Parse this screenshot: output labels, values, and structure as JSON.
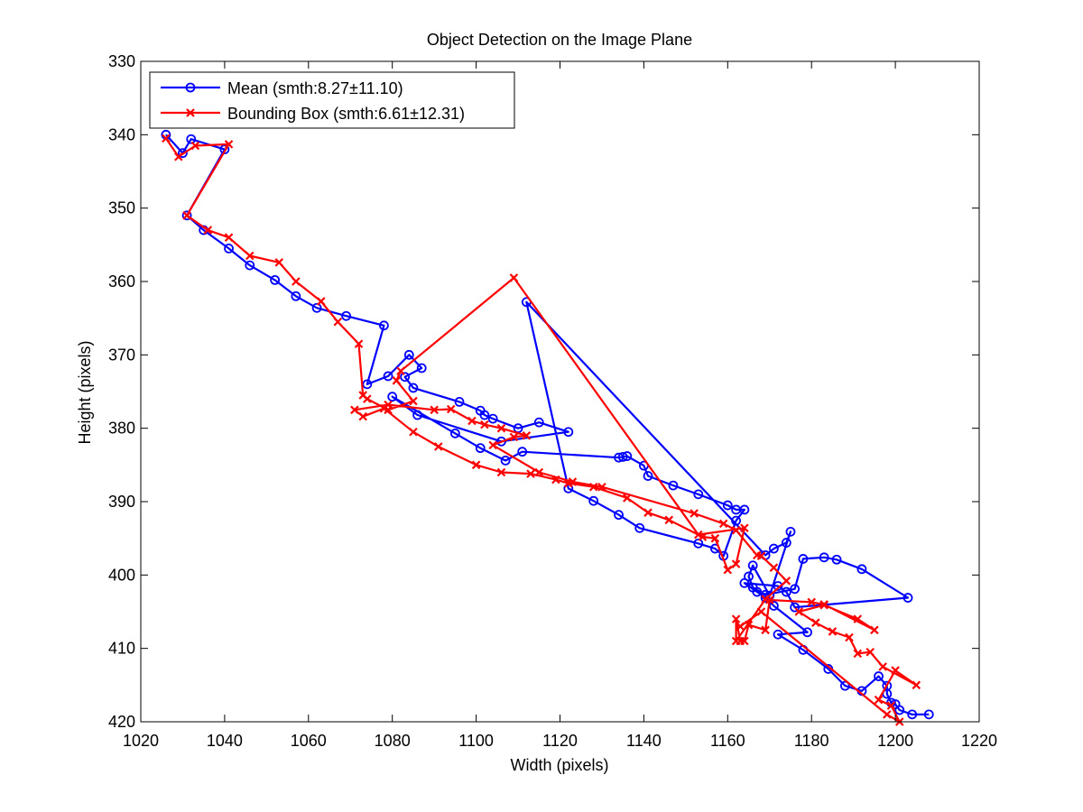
{
  "chart_data": {
    "type": "line",
    "title": "Object Detection on the Image Plane",
    "xlabel": "Width (pixels)",
    "ylabel": "Height (pixels)",
    "xlim": [
      1020,
      1220
    ],
    "ylim": [
      330,
      420
    ],
    "y_reversed": true,
    "xticks": [
      1020,
      1040,
      1060,
      1080,
      1100,
      1120,
      1140,
      1160,
      1180,
      1200,
      1220
    ],
    "yticks": [
      330,
      340,
      350,
      360,
      370,
      380,
      390,
      400,
      410,
      420
    ],
    "grid": false,
    "legend_position": "top-left",
    "series": [
      {
        "name": "Mean (smth:8.27±11.10)",
        "color": "#0000ff",
        "marker": "circle",
        "points": [
          [
            1026,
            340
          ],
          [
            1030,
            342.5
          ],
          [
            1032,
            340.6
          ],
          [
            1040,
            342
          ],
          [
            1031,
            351
          ],
          [
            1035,
            353
          ],
          [
            1041,
            355.5
          ],
          [
            1046,
            357.8
          ],
          [
            1052,
            359.8
          ],
          [
            1057,
            362
          ],
          [
            1062,
            363.6
          ],
          [
            1069,
            364.7
          ],
          [
            1078,
            366
          ],
          [
            1074,
            374
          ],
          [
            1079,
            372.9
          ],
          [
            1084,
            370
          ],
          [
            1087,
            371.8
          ],
          [
            1083,
            373
          ],
          [
            1085,
            374.5
          ],
          [
            1096,
            376.4
          ],
          [
            1101,
            377.6
          ],
          [
            1102,
            378.2
          ],
          [
            1104,
            378.7
          ],
          [
            1110,
            380
          ],
          [
            1115,
            379.2
          ],
          [
            1122,
            380.5
          ],
          [
            1106,
            381.8
          ],
          [
            1086,
            378.2
          ],
          [
            1080,
            375.7
          ],
          [
            1095,
            380.7
          ],
          [
            1101,
            382.7
          ],
          [
            1107,
            384.4
          ],
          [
            1111,
            383.2
          ],
          [
            1134,
            384
          ],
          [
            1135,
            383.9
          ],
          [
            1136,
            383.8
          ],
          [
            1140,
            385.1
          ],
          [
            1141,
            386.5
          ],
          [
            1147,
            387.8
          ],
          [
            1153,
            389
          ],
          [
            1160,
            390.5
          ],
          [
            1162,
            391.1
          ],
          [
            1164,
            391.1
          ],
          [
            1162,
            392.6
          ],
          [
            1159,
            397.4
          ],
          [
            1157,
            396.4
          ],
          [
            1153,
            395.7
          ],
          [
            1139,
            393.6
          ],
          [
            1134,
            391.8
          ],
          [
            1128,
            389.9
          ],
          [
            1122,
            388.2
          ],
          [
            1112,
            362.8
          ],
          [
            1169,
            397.3
          ],
          [
            1171,
            396.4
          ],
          [
            1174,
            395.6
          ],
          [
            1175,
            394.1
          ],
          [
            1170,
            402.8
          ],
          [
            1166,
            398.7
          ],
          [
            1165,
            400.2
          ],
          [
            1166,
            401.7
          ],
          [
            1169,
            402.7
          ],
          [
            1176,
            401.9
          ],
          [
            1178,
            397.8
          ],
          [
            1183,
            397.6
          ],
          [
            1186,
            397.9
          ],
          [
            1192,
            399.2
          ],
          [
            1203,
            403.1
          ],
          [
            1176,
            404.4
          ],
          [
            1174,
            402.3
          ],
          [
            1172,
            401.5
          ],
          [
            1164,
            401.1
          ],
          [
            1167,
            402.3
          ],
          [
            1169,
            403.1
          ],
          [
            1171,
            404.2
          ],
          [
            1179,
            407.8
          ],
          [
            1172,
            408.1
          ],
          [
            1178,
            410.2
          ],
          [
            1184,
            412.8
          ],
          [
            1188,
            415.1
          ],
          [
            1192,
            415.8
          ],
          [
            1196,
            413.8
          ],
          [
            1198,
            415.1
          ],
          [
            1198,
            416.2
          ],
          [
            1199,
            417.4
          ],
          [
            1200,
            417.6
          ],
          [
            1201,
            418.4
          ],
          [
            1204,
            419
          ],
          [
            1208,
            419
          ]
        ]
      },
      {
        "name": "Bounding Box (smth:6.61±12.31)",
        "color": "#ff0000",
        "marker": "x",
        "points": [
          [
            1026,
            340.5
          ],
          [
            1029,
            343
          ],
          [
            1033,
            341.5
          ],
          [
            1041,
            341.3
          ],
          [
            1031,
            351
          ],
          [
            1036,
            353
          ],
          [
            1041,
            354
          ],
          [
            1046,
            356.5
          ],
          [
            1053,
            357.4
          ],
          [
            1057,
            360
          ],
          [
            1063,
            362.7
          ],
          [
            1067,
            365.5
          ],
          [
            1072,
            368.5
          ],
          [
            1073,
            375.5
          ],
          [
            1074,
            376
          ],
          [
            1079,
            377.5
          ],
          [
            1085,
            376.3
          ],
          [
            1081,
            373.5
          ],
          [
            1082,
            372.2
          ],
          [
            1109,
            359.5
          ],
          [
            1153,
            394.5
          ],
          [
            1164,
            393.6
          ],
          [
            1162,
            398.5
          ],
          [
            1160,
            399.3
          ],
          [
            1157,
            395
          ],
          [
            1154,
            394.8
          ],
          [
            1146,
            392.5
          ],
          [
            1141,
            391.5
          ],
          [
            1136,
            389.5
          ],
          [
            1128,
            388
          ],
          [
            1122,
            387.5
          ],
          [
            1119,
            387
          ],
          [
            1113,
            386.2
          ],
          [
            1106,
            386
          ],
          [
            1100,
            385
          ],
          [
            1091,
            382.5
          ],
          [
            1085,
            380.5
          ],
          [
            1078,
            377.3
          ],
          [
            1073,
            378.4
          ],
          [
            1071,
            377.5
          ],
          [
            1079,
            376.8
          ],
          [
            1090,
            377.5
          ],
          [
            1094,
            377.4
          ],
          [
            1099,
            379
          ],
          [
            1102,
            379.5
          ],
          [
            1106,
            380
          ],
          [
            1112,
            381
          ],
          [
            1109,
            381.2
          ],
          [
            1104,
            382.3
          ],
          [
            1115,
            386
          ],
          [
            1123,
            387.3
          ],
          [
            1130,
            388
          ],
          [
            1152,
            391.6
          ],
          [
            1159,
            393
          ],
          [
            1162,
            393.9
          ],
          [
            1167,
            397.3
          ],
          [
            1168,
            397.4
          ],
          [
            1171,
            399
          ],
          [
            1174,
            400.8
          ],
          [
            1169,
            403.3
          ],
          [
            1162,
            409
          ],
          [
            1162,
            406
          ],
          [
            1163,
            409
          ],
          [
            1164,
            409
          ],
          [
            1165,
            406.8
          ],
          [
            1169,
            407.5
          ],
          [
            1170,
            403.4
          ],
          [
            1180,
            403.7
          ],
          [
            1183,
            404
          ],
          [
            1195,
            407.5
          ],
          [
            1191,
            406
          ],
          [
            1183,
            404.1
          ],
          [
            1177,
            405
          ],
          [
            1181,
            406.5
          ],
          [
            1185,
            407.7
          ],
          [
            1189,
            408.5
          ],
          [
            1191,
            410.7
          ],
          [
            1194,
            410.5
          ],
          [
            1197,
            412.5
          ],
          [
            1205,
            415
          ],
          [
            1200,
            413
          ],
          [
            1196,
            417
          ],
          [
            1199,
            417.8
          ],
          [
            1201,
            420
          ],
          [
            1198,
            419
          ],
          [
            1168,
            405
          ],
          [
            1163,
            407
          ]
        ]
      }
    ]
  }
}
